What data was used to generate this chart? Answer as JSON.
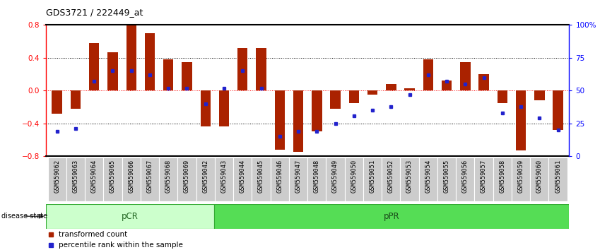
{
  "title": "GDS3721 / 222449_at",
  "samples": [
    "GSM559062",
    "GSM559063",
    "GSM559064",
    "GSM559065",
    "GSM559066",
    "GSM559067",
    "GSM559068",
    "GSM559069",
    "GSM559042",
    "GSM559043",
    "GSM559044",
    "GSM559045",
    "GSM559046",
    "GSM559047",
    "GSM559048",
    "GSM559049",
    "GSM559050",
    "GSM559051",
    "GSM559052",
    "GSM559053",
    "GSM559054",
    "GSM559055",
    "GSM559056",
    "GSM559057",
    "GSM559058",
    "GSM559059",
    "GSM559060",
    "GSM559061"
  ],
  "bar_values": [
    -0.28,
    -0.22,
    0.58,
    0.47,
    0.8,
    0.7,
    0.38,
    0.35,
    -0.44,
    -0.44,
    0.52,
    0.52,
    -0.72,
    -0.75,
    -0.5,
    -0.22,
    -0.15,
    -0.05,
    0.08,
    0.03,
    0.38,
    0.12,
    0.35,
    0.2,
    -0.15,
    -0.73,
    -0.12,
    -0.48
  ],
  "dot_percentiles": [
    19,
    21,
    57,
    65,
    65,
    62,
    52,
    52,
    40,
    52,
    65,
    52,
    15,
    19,
    19,
    25,
    31,
    35,
    38,
    47,
    62,
    57,
    55,
    60,
    33,
    38,
    29,
    20
  ],
  "pCR_count": 9,
  "pPR_count": 19,
  "bar_color": "#AA2200",
  "dot_color": "#2222CC",
  "pCR_color": "#CCFFCC",
  "pPR_color": "#55DD55",
  "ylim": [
    -0.8,
    0.8
  ],
  "yticks_left": [
    -0.8,
    -0.4,
    0.0,
    0.4,
    0.8
  ],
  "yticks_right_pct": [
    0,
    25,
    50,
    75,
    100
  ],
  "hlines": [
    -0.4,
    0.0,
    0.4
  ],
  "background_color": "#FFFFFF"
}
